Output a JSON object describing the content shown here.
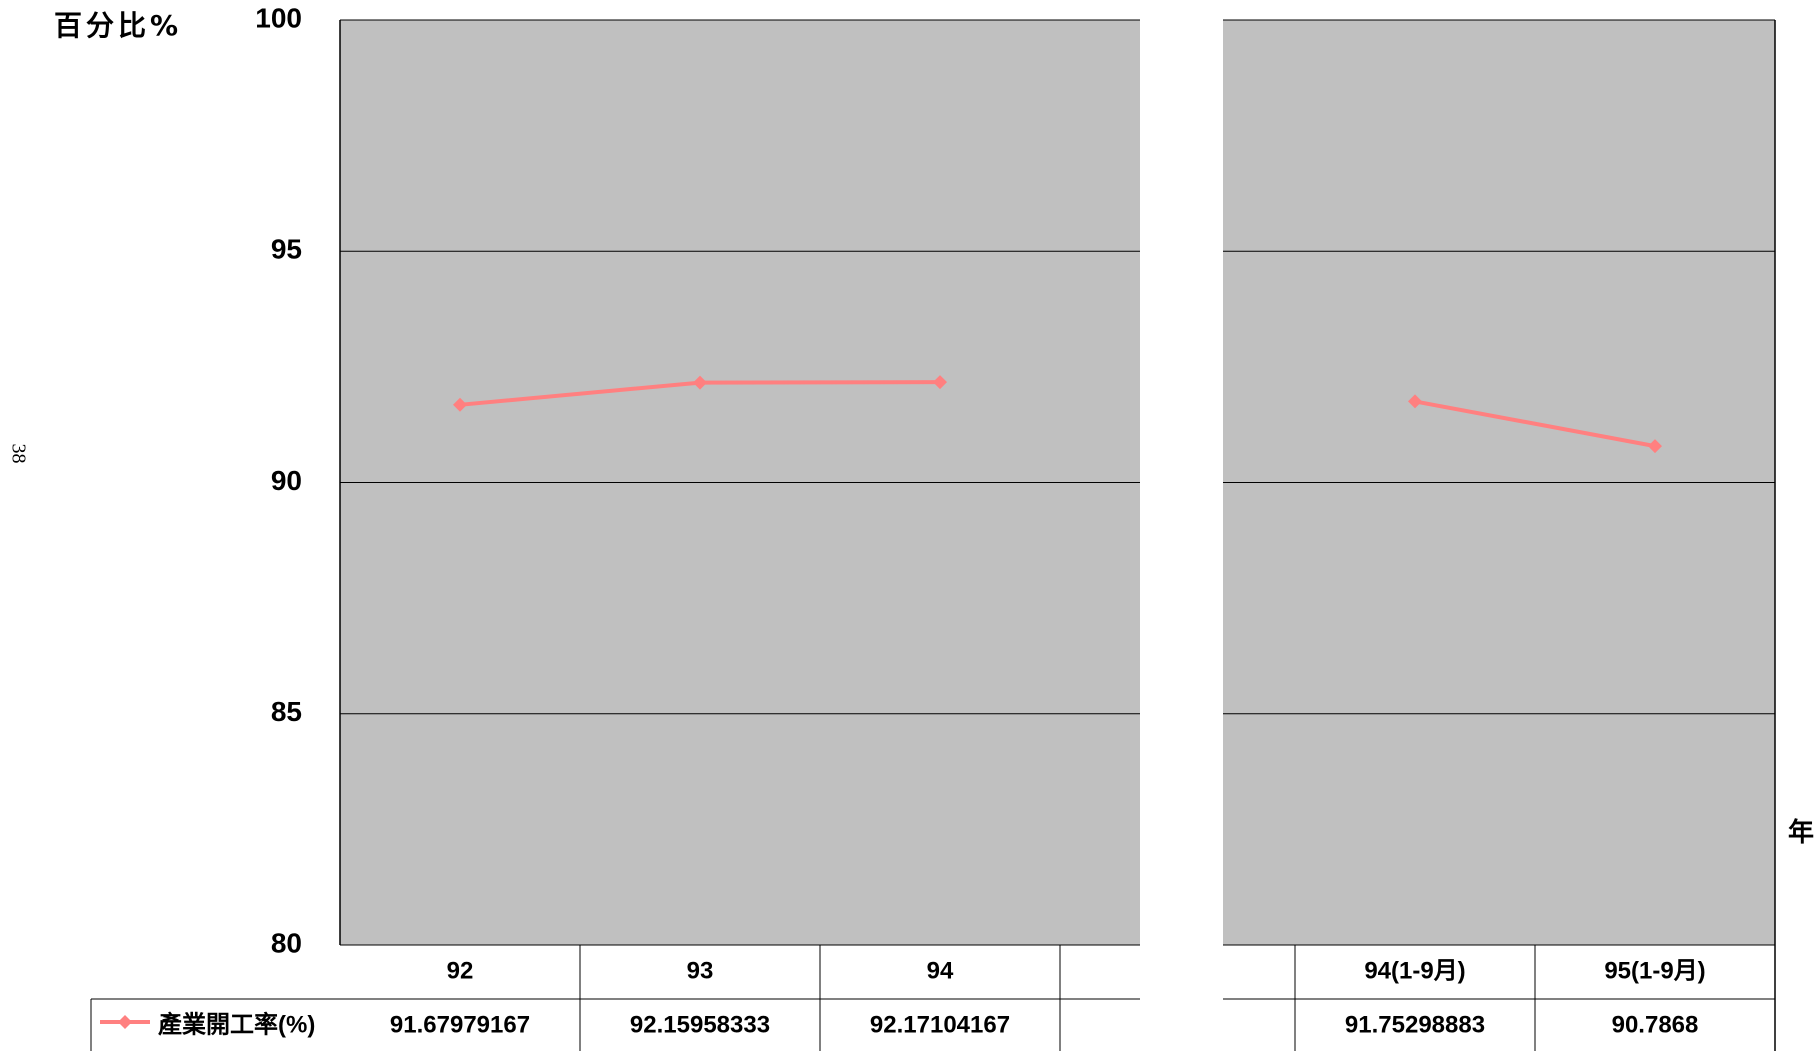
{
  "page_number": "38",
  "chart_data": {
    "type": "line",
    "ylabel": "百分比%",
    "xlabel": "年",
    "ylim": [
      80,
      100
    ],
    "y_ticks": [
      80,
      85,
      90,
      95,
      100
    ],
    "grid": true,
    "background_color": "#c0c0c0",
    "panels": [
      {
        "categories": [
          "92",
          "93",
          "94",
          ""
        ],
        "values": [
          91.67979167,
          92.15958333,
          92.17104167,
          null
        ],
        "value_labels": [
          "91.67979167",
          "92.15958333",
          "92.17104167",
          ""
        ]
      },
      {
        "categories": [
          "",
          "94(1-9月)",
          "95(1-9月)"
        ],
        "values": [
          null,
          91.75298883,
          90.7868
        ],
        "value_labels": [
          "",
          "91.75298883",
          "90.7868"
        ]
      }
    ],
    "series": [
      {
        "name": "產業開工率(%)",
        "color": "#ff8080",
        "marker": "diamond"
      }
    ],
    "legend_placement": "data-table"
  }
}
